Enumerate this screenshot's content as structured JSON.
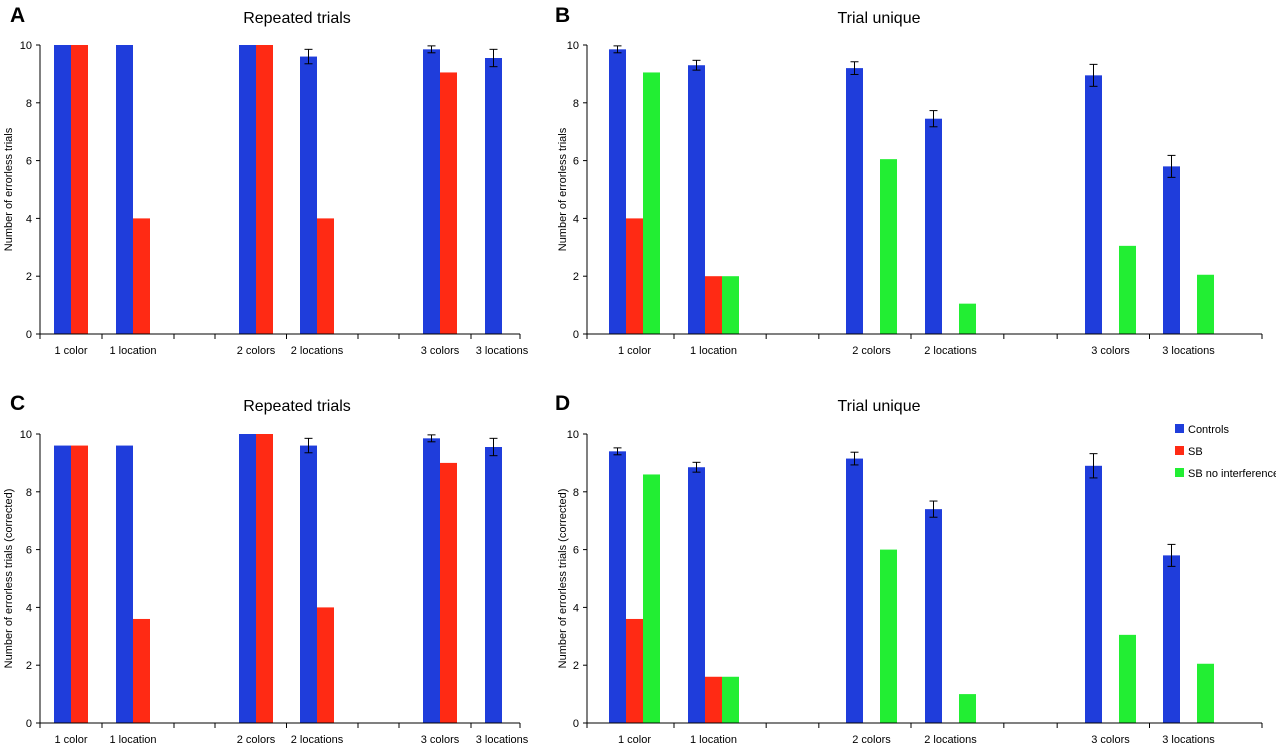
{
  "colors": {
    "controls": "#1f3ddb",
    "sb": "#ff2a14",
    "sb_no_interference": "#22ee33",
    "axis": "#000000",
    "errorbar": "#000000"
  },
  "legend": {
    "items": [
      {
        "label": "Controls",
        "color": "#1f3ddb"
      },
      {
        "label": "SB",
        "color": "#ff2a14"
      },
      {
        "label": "SB no interference",
        "color": "#22ee33"
      }
    ]
  },
  "chart_data": [
    {
      "panel": "A",
      "type": "bar",
      "title": "Repeated trials",
      "xlabel": "",
      "ylabel": "Number of errorless trials",
      "ylim": [
        0,
        10
      ],
      "yticks": [
        "0",
        "2",
        "4",
        "6",
        "8",
        "10"
      ],
      "categories": [
        "1 color",
        "1 location",
        "2 colors",
        "2 locations",
        "3 colors",
        "3 locations"
      ],
      "series": [
        {
          "name": "Controls",
          "values": [
            10,
            10,
            10,
            9.6,
            9.85,
            9.55
          ],
          "errors": [
            0,
            0,
            0,
            0.25,
            0.12,
            0.3
          ]
        },
        {
          "name": "SB",
          "values": [
            10,
            4,
            10,
            4,
            9.05,
            null
          ],
          "errors": null
        }
      ]
    },
    {
      "panel": "B",
      "type": "bar",
      "title": "Trial unique",
      "xlabel": "",
      "ylabel": "Number of errorless trials",
      "ylim": [
        0,
        10
      ],
      "yticks": [
        "0",
        "2",
        "4",
        "6",
        "8",
        "10"
      ],
      "categories": [
        "1 color",
        "1 location",
        "2 colors",
        "2 locations",
        "3 colors",
        "3 locations"
      ],
      "series": [
        {
          "name": "Controls",
          "values": [
            9.85,
            9.3,
            9.2,
            7.45,
            8.95,
            5.8
          ],
          "errors": [
            0.12,
            0.17,
            0.22,
            0.28,
            0.38,
            0.38
          ]
        },
        {
          "name": "SB",
          "values": [
            4,
            2,
            null,
            null,
            null,
            null
          ],
          "errors": null
        },
        {
          "name": "SB no interference",
          "values": [
            9.05,
            2,
            6.05,
            1.05,
            3.05,
            2.05
          ],
          "errors": null
        }
      ]
    },
    {
      "panel": "C",
      "type": "bar",
      "title": "Repeated trials",
      "xlabel": "",
      "ylabel": "Number of errorless trials (corrected)",
      "ylim": [
        0,
        10
      ],
      "yticks": [
        "0",
        "2",
        "4",
        "6",
        "8",
        "10"
      ],
      "categories": [
        "1 color",
        "1 location",
        "2 colors",
        "2 locations",
        "3 colors",
        "3 locations"
      ],
      "series": [
        {
          "name": "Controls",
          "values": [
            9.6,
            9.6,
            10,
            9.6,
            9.85,
            9.55
          ],
          "errors": [
            0,
            0,
            0,
            0.25,
            0.12,
            0.3
          ]
        },
        {
          "name": "SB",
          "values": [
            9.6,
            3.6,
            10,
            4,
            9.0,
            null
          ],
          "errors": null
        }
      ]
    },
    {
      "panel": "D",
      "type": "bar",
      "title": "Trial unique",
      "xlabel": "",
      "ylabel": "Number of errorless trials (corrected)",
      "ylim": [
        0,
        10
      ],
      "yticks": [
        "0",
        "2",
        "4",
        "6",
        "8",
        "10"
      ],
      "categories": [
        "1 color",
        "1 location",
        "2 colors",
        "2 locations",
        "3 colors",
        "3 locations"
      ],
      "legend_position": "top-right",
      "series": [
        {
          "name": "Controls",
          "values": [
            9.4,
            8.85,
            9.15,
            7.4,
            8.9,
            5.8
          ],
          "errors": [
            0.12,
            0.17,
            0.22,
            0.28,
            0.42,
            0.38
          ]
        },
        {
          "name": "SB",
          "values": [
            3.6,
            1.6,
            null,
            null,
            null,
            null
          ],
          "errors": null
        },
        {
          "name": "SB no interference",
          "values": [
            8.6,
            1.6,
            6.0,
            1.0,
            3.05,
            2.05
          ],
          "errors": null
        }
      ]
    }
  ]
}
